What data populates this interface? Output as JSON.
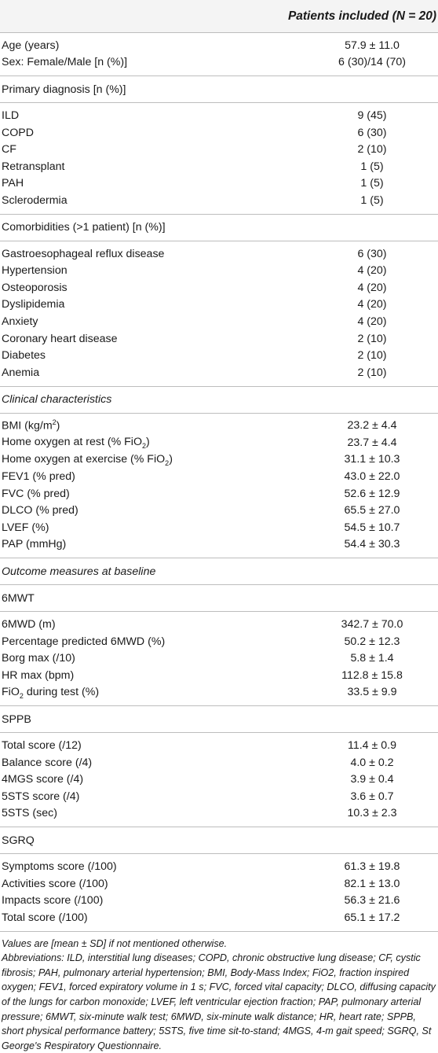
{
  "header": {
    "title": "Patients included (N = 20)"
  },
  "demographics": [
    {
      "label": "Age (years)",
      "value": "57.9 ± 11.0"
    },
    {
      "label": "Sex: Female/Male [n (%)]",
      "value": "6 (30)/14 (70)"
    }
  ],
  "primary_diagnosis": {
    "heading": "Primary diagnosis [n (%)]",
    "rows": [
      {
        "label": "ILD",
        "value": "9 (45)"
      },
      {
        "label": "COPD",
        "value": "6 (30)"
      },
      {
        "label": "CF",
        "value": "2 (10)"
      },
      {
        "label": "Retransplant",
        "value": "1 (5)"
      },
      {
        "label": "PAH",
        "value": "1 (5)"
      },
      {
        "label": "Sclerodermia",
        "value": "1 (5)"
      }
    ]
  },
  "comorbidities": {
    "heading": "Comorbidities (>1 patient) [n (%)]",
    "rows": [
      {
        "label": "Gastroesophageal reflux disease",
        "value": "6 (30)"
      },
      {
        "label": "Hypertension",
        "value": "4 (20)"
      },
      {
        "label": "Osteoporosis",
        "value": "4 (20)"
      },
      {
        "label": "Dyslipidemia",
        "value": "4 (20)"
      },
      {
        "label": "Anxiety",
        "value": "4 (20)"
      },
      {
        "label": "Coronary heart disease",
        "value": "2 (10)"
      },
      {
        "label": "Diabetes",
        "value": "2 (10)"
      },
      {
        "label": "Anemia",
        "value": "2 (10)"
      }
    ]
  },
  "clinical": {
    "heading": "Clinical characteristics",
    "bmi_label": "BMI (kg/m",
    "bmi_sup": "2",
    "bmi_close": ")",
    "bmi_value": "23.2 ± 4.4",
    "oxy_rest_label": "Home oxygen at rest (% FiO",
    "oxy_rest_sub": "2",
    "oxy_rest_close": ")",
    "oxy_rest_value": "23.7 ± 4.4",
    "oxy_ex_label": "Home oxygen at exercise (% FiO",
    "oxy_ex_sub": "2",
    "oxy_ex_close": ")",
    "oxy_ex_value": "31.1 ± 10.3",
    "rows": [
      {
        "label": "FEV1 (% pred)",
        "value": "43.0 ± 22.0"
      },
      {
        "label": "FVC (% pred)",
        "value": "52.6 ± 12.9"
      },
      {
        "label": "DLCO (% pred)",
        "value": "65.5 ± 27.0"
      },
      {
        "label": "LVEF (%)",
        "value": "54.5 ± 10.7"
      },
      {
        "label": "PAP (mmHg)",
        "value": "54.4 ± 30.3"
      }
    ]
  },
  "outcome": {
    "heading": "Outcome measures at baseline"
  },
  "mwt": {
    "heading": "6MWT",
    "rows": [
      {
        "label": "6MWD (m)",
        "value": "342.7 ± 70.0"
      },
      {
        "label": "Percentage predicted 6MWD (%)",
        "value": "50.2 ± 12.3"
      },
      {
        "label": "Borg max (/10)",
        "value": "5.8 ± 1.4"
      },
      {
        "label": "HR max (bpm)",
        "value": "112.8 ± 15.8"
      }
    ],
    "fio2_label_pre": "FiO",
    "fio2_sub": "2",
    "fio2_label_post": " during test (%)",
    "fio2_value": "33.5 ± 9.9"
  },
  "sppb": {
    "heading": "SPPB",
    "rows": [
      {
        "label": "Total score (/12)",
        "value": "11.4 ± 0.9"
      },
      {
        "label": "Balance score (/4)",
        "value": "4.0 ± 0.2"
      },
      {
        "label": "4MGS score (/4)",
        "value": "3.9 ± 0.4"
      },
      {
        "label": "5STS score (/4)",
        "value": "3.6 ± 0.7"
      },
      {
        "label": "5STS (sec)",
        "value": "10.3 ± 2.3"
      }
    ]
  },
  "sgrq": {
    "heading": "SGRQ",
    "rows": [
      {
        "label": "Symptoms score (/100)",
        "value": "61.3 ± 19.8"
      },
      {
        "label": "Activities score (/100)",
        "value": "82.1 ± 13.0"
      },
      {
        "label": "Impacts score (/100)",
        "value": "56.3 ± 21.6"
      },
      {
        "label": "Total score (/100)",
        "value": "65.1 ± 17.2"
      }
    ]
  },
  "notes": {
    "values_note": "Values are [mean ± SD] if not mentioned otherwise.",
    "abbreviations": "Abbreviations: ILD, interstitial lung diseases; COPD, chronic obstructive lung disease; CF, cystic fibrosis; PAH, pulmonary arterial hypertension; BMI, Body-Mass Index; FiO2, fraction inspired oxygen; FEV1, forced expiratory volume in 1 s; FVC, forced vital capacity; DLCO, diffusing capacity of the lungs for carbon monoxide; LVEF, left ventricular ejection fraction; PAP, pulmonary arterial pressure; 6MWT, six-minute walk test; 6MWD, six-minute walk distance; HR, heart rate; SPPB, short physical performance battery; 5STS, five time sit-to-stand; 4MGS, 4-m gait speed; SGRQ, St George's Respiratory Questionnaire."
  }
}
